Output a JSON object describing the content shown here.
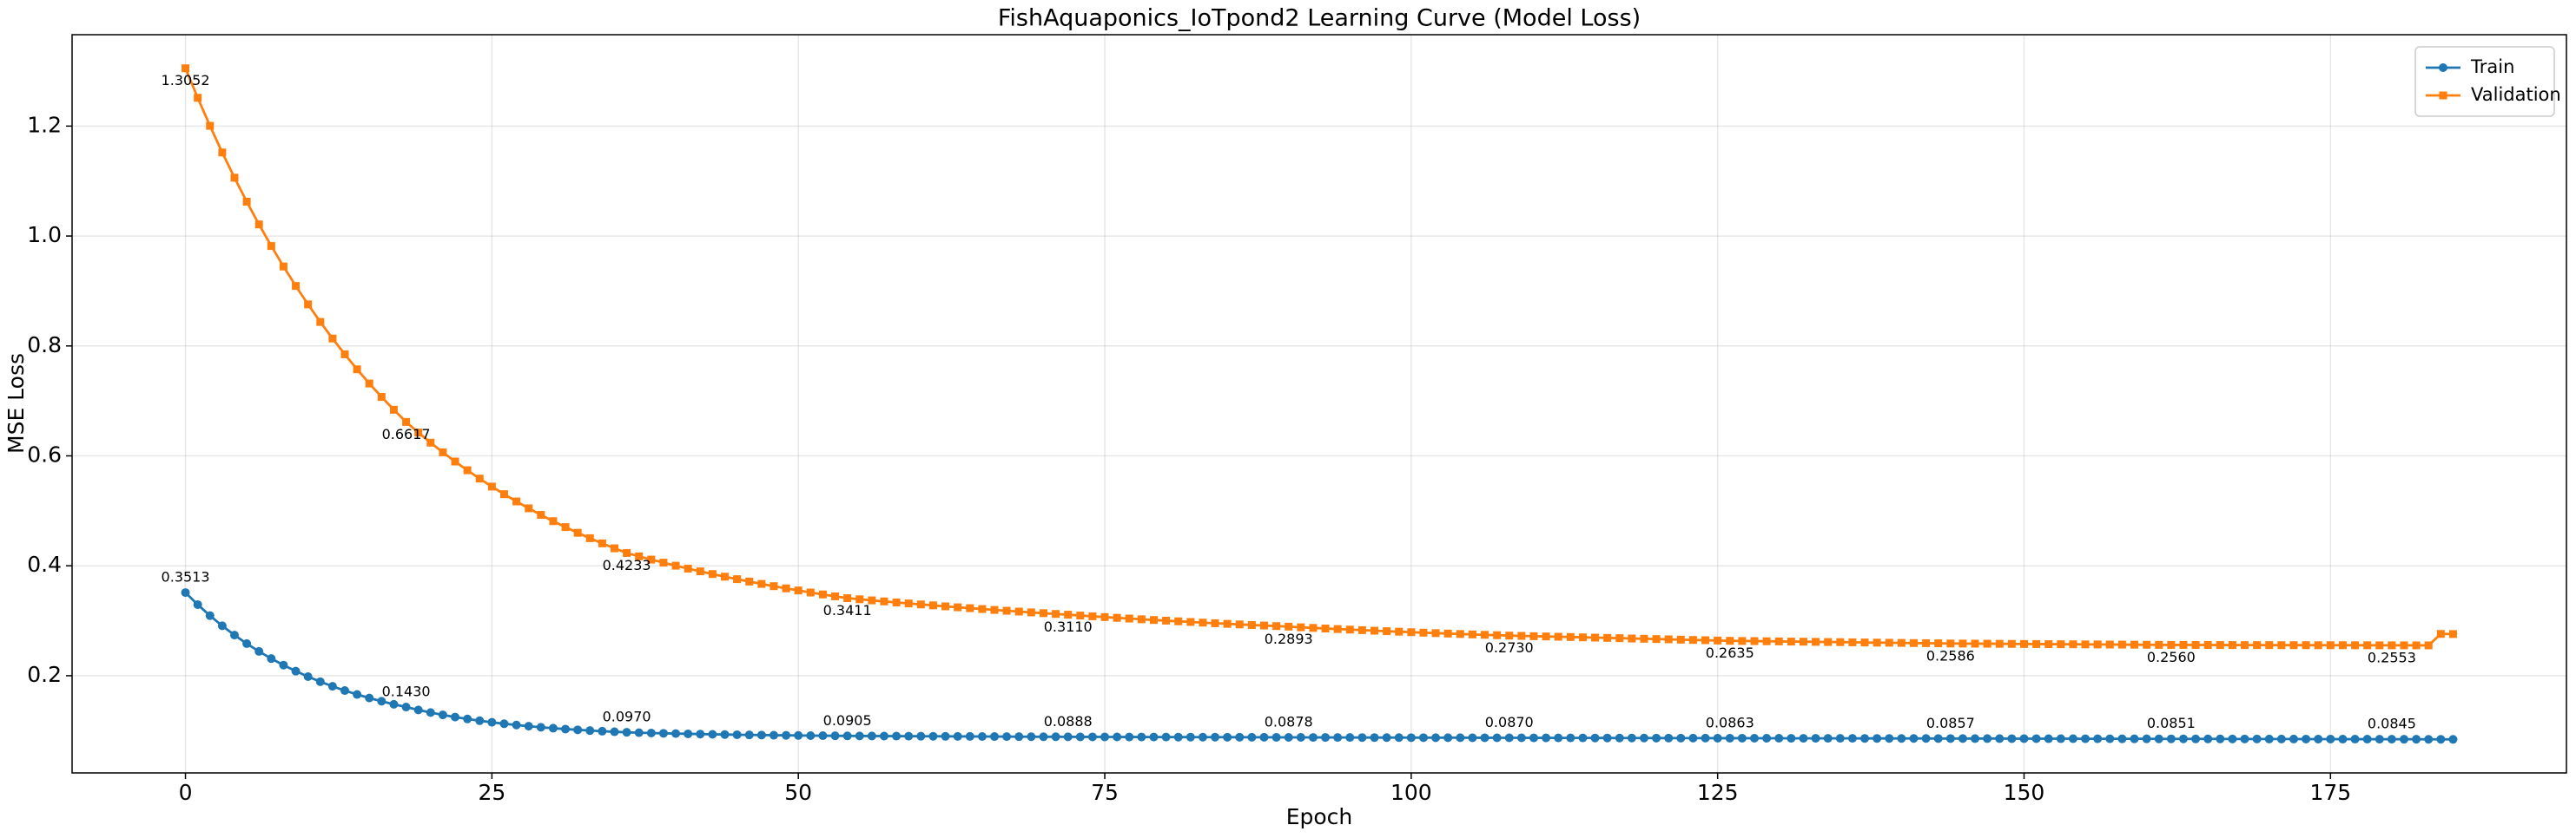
{
  "chart_data": {
    "type": "line",
    "title": "FishAquaponics_IoTpond2 Learning Curve (Model Loss)",
    "xlabel": "Epoch",
    "ylabel": "MSE Loss",
    "x": [
      0,
      1,
      2,
      3,
      4,
      5,
      6,
      7,
      8,
      9,
      10,
      11,
      12,
      13,
      14,
      15,
      16,
      17,
      18,
      19,
      20,
      21,
      22,
      23,
      24,
      25,
      26,
      27,
      28,
      29,
      30,
      31,
      32,
      33,
      34,
      35,
      36,
      37,
      38,
      39,
      40,
      41,
      42,
      43,
      44,
      45,
      46,
      47,
      48,
      49,
      50,
      51,
      52,
      53,
      54,
      55,
      56,
      57,
      58,
      59,
      60,
      61,
      62,
      63,
      64,
      65,
      66,
      67,
      68,
      69,
      70,
      71,
      72,
      73,
      74,
      75,
      76,
      77,
      78,
      79,
      80,
      81,
      82,
      83,
      84,
      85,
      86,
      87,
      88,
      89,
      90,
      91,
      92,
      93,
      94,
      95,
      96,
      97,
      98,
      99,
      100,
      101,
      102,
      103,
      104,
      105,
      106,
      107,
      108,
      109,
      110,
      111,
      112,
      113,
      114,
      115,
      116,
      117,
      118,
      119,
      120,
      121,
      122,
      123,
      124,
      125,
      126,
      127,
      128,
      129,
      130,
      131,
      132,
      133,
      134,
      135,
      136,
      137,
      138,
      139,
      140,
      141,
      142,
      143,
      144,
      145,
      146,
      147,
      148,
      149,
      150,
      151,
      152,
      153,
      154,
      155,
      156,
      157,
      158,
      159,
      160,
      161,
      162,
      163,
      164,
      165,
      166,
      167,
      168,
      169,
      170,
      171,
      172,
      173,
      174,
      175,
      176,
      177,
      178,
      179,
      180,
      181,
      182,
      183,
      184,
      185
    ],
    "series": [
      {
        "name": "Train",
        "color": "#1f77b4",
        "marker": "circle",
        "annotation_color": "#0000ee",
        "annotation_side": "above",
        "values": [
          0.3513,
          0.3294,
          0.3093,
          0.2908,
          0.2739,
          0.2584,
          0.2442,
          0.2312,
          0.2193,
          0.2083,
          0.1983,
          0.1891,
          0.1807,
          0.173,
          0.1659,
          0.1594,
          0.1535,
          0.148,
          0.143,
          0.1377,
          0.133,
          0.1287,
          0.1248,
          0.1213,
          0.1181,
          0.1152,
          0.1126,
          0.1103,
          0.1081,
          0.1062,
          0.1045,
          0.1029,
          0.1015,
          0.1002,
          0.099,
          0.098,
          0.097,
          0.0963,
          0.0957,
          0.0952,
          0.0947,
          0.0942,
          0.0938,
          0.0933,
          0.093,
          0.0926,
          0.0923,
          0.092,
          0.0917,
          0.0915,
          0.0913,
          0.091,
          0.0909,
          0.0907,
          0.0905,
          0.0904,
          0.0903,
          0.0902,
          0.0901,
          0.09,
          0.0899,
          0.0898,
          0.0897,
          0.0896,
          0.0895,
          0.0894,
          0.0893,
          0.0892,
          0.0891,
          0.089,
          0.0889,
          0.0889,
          0.0888,
          0.0887,
          0.0887,
          0.0886,
          0.0886,
          0.0885,
          0.0885,
          0.0884,
          0.0884,
          0.0883,
          0.0883,
          0.0882,
          0.0882,
          0.0881,
          0.0881,
          0.088,
          0.088,
          0.0879,
          0.0878,
          0.0878,
          0.0877,
          0.0877,
          0.0876,
          0.0876,
          0.0875,
          0.0875,
          0.0874,
          0.0874,
          0.0873,
          0.0873,
          0.0872,
          0.0872,
          0.0872,
          0.0871,
          0.0871,
          0.087,
          0.087,
          0.087,
          0.0869,
          0.0869,
          0.0868,
          0.0868,
          0.0868,
          0.0867,
          0.0867,
          0.0866,
          0.0866,
          0.0866,
          0.0865,
          0.0865,
          0.0864,
          0.0864,
          0.0864,
          0.0863,
          0.0863,
          0.0863,
          0.0862,
          0.0862,
          0.0862,
          0.0861,
          0.0861,
          0.0861,
          0.086,
          0.086,
          0.086,
          0.0859,
          0.0859,
          0.0859,
          0.0858,
          0.0858,
          0.0858,
          0.0857,
          0.0857,
          0.0857,
          0.0856,
          0.0856,
          0.0856,
          0.0855,
          0.0855,
          0.0855,
          0.0854,
          0.0854,
          0.0854,
          0.0853,
          0.0853,
          0.0853,
          0.0852,
          0.0852,
          0.0852,
          0.0851,
          0.0851,
          0.0851,
          0.085,
          0.085,
          0.085,
          0.0849,
          0.0849,
          0.0849,
          0.0848,
          0.0848,
          0.0848,
          0.0847,
          0.0847,
          0.0847,
          0.0846,
          0.0846,
          0.0846,
          0.0845,
          0.0845,
          0.0844,
          0.0844,
          0.0843,
          0.0843,
          0.0842
        ],
        "value_labels": {
          "0": "0.3513",
          "18": "0.1430",
          "36": "0.0970",
          "54": "0.0905",
          "72": "0.0888",
          "90": "0.0878",
          "108": "0.0870",
          "126": "0.0863",
          "144": "0.0857",
          "162": "0.0851",
          "180": "0.0845"
        }
      },
      {
        "name": "Validation",
        "color": "#ff7f0e",
        "marker": "square",
        "annotation_color": "#ffa500",
        "annotation_side": "below",
        "values": [
          1.3052,
          1.2515,
          1.2005,
          1.152,
          1.1061,
          1.0625,
          1.0211,
          0.9818,
          0.9446,
          0.9092,
          0.8756,
          0.8437,
          0.8135,
          0.7848,
          0.7575,
          0.7317,
          0.7072,
          0.6839,
          0.6617,
          0.6424,
          0.624,
          0.6064,
          0.5897,
          0.5738,
          0.5586,
          0.5441,
          0.5303,
          0.5171,
          0.5046,
          0.4926,
          0.4812,
          0.4704,
          0.46,
          0.4502,
          0.4408,
          0.4318,
          0.4233,
          0.4172,
          0.4113,
          0.4057,
          0.4002,
          0.3949,
          0.3899,
          0.385,
          0.3802,
          0.3757,
          0.3713,
          0.367,
          0.3629,
          0.3589,
          0.3551,
          0.3514,
          0.3479,
          0.3444,
          0.3411,
          0.3391,
          0.3371,
          0.3352,
          0.3333,
          0.3315,
          0.3297,
          0.328,
          0.3262,
          0.3245,
          0.3229,
          0.3213,
          0.3197,
          0.3182,
          0.3167,
          0.3152,
          0.3138,
          0.3124,
          0.311,
          0.3095,
          0.3081,
          0.3067,
          0.3053,
          0.304,
          0.3027,
          0.3014,
          0.3002,
          0.299,
          0.2978,
          0.2966,
          0.2955,
          0.2944,
          0.2933,
          0.2923,
          0.2913,
          0.2903,
          0.2893,
          0.2881,
          0.287,
          0.2859,
          0.2849,
          0.2839,
          0.2829,
          0.2819,
          0.281,
          0.2801,
          0.2792,
          0.2783,
          0.2775,
          0.2767,
          0.2759,
          0.2751,
          0.2744,
          0.2737,
          0.273,
          0.2725,
          0.2719,
          0.2714,
          0.2709,
          0.2704,
          0.2698,
          0.2693,
          0.2688,
          0.2683,
          0.2677,
          0.2672,
          0.2667,
          0.2662,
          0.2656,
          0.2651,
          0.2646,
          0.264,
          0.2635,
          0.2632,
          0.263,
          0.2627,
          0.2624,
          0.2621,
          0.2619,
          0.2616,
          0.2613,
          0.2611,
          0.2608,
          0.2605,
          0.2602,
          0.26,
          0.2597,
          0.2594,
          0.2592,
          0.2589,
          0.2586,
          0.2585,
          0.2583,
          0.2582,
          0.258,
          0.2579,
          0.2577,
          0.2576,
          0.2574,
          0.2573,
          0.2572,
          0.257,
          0.2569,
          0.2567,
          0.2566,
          0.2564,
          0.2563,
          0.2561,
          0.256,
          0.256,
          0.2559,
          0.2559,
          0.2558,
          0.2558,
          0.2557,
          0.2557,
          0.2557,
          0.2556,
          0.2556,
          0.2556,
          0.2555,
          0.2555,
          0.2555,
          0.2554,
          0.2554,
          0.2553,
          0.2553,
          0.2553,
          0.2552,
          0.2552,
          0.276,
          0.2758
        ],
        "value_labels": {
          "0": "1.3052",
          "18": "0.6617",
          "36": "0.4233",
          "54": "0.3411",
          "72": "0.3110",
          "90": "0.2893",
          "108": "0.2730",
          "126": "0.2635",
          "144": "0.2586",
          "162": "0.2560",
          "180": "0.2553"
        }
      }
    ],
    "xlim": [
      -9.25,
      194.25
    ],
    "xticks": [
      0,
      25,
      50,
      75,
      100,
      125,
      150,
      175
    ],
    "ylim": [
      0.0231,
      1.3663
    ],
    "yticks": [
      0.2,
      0.4,
      0.6,
      0.8,
      {
        "value": 1,
        "label": "1.0"
      },
      1.2
    ],
    "grid": true,
    "legend": "upper right"
  }
}
